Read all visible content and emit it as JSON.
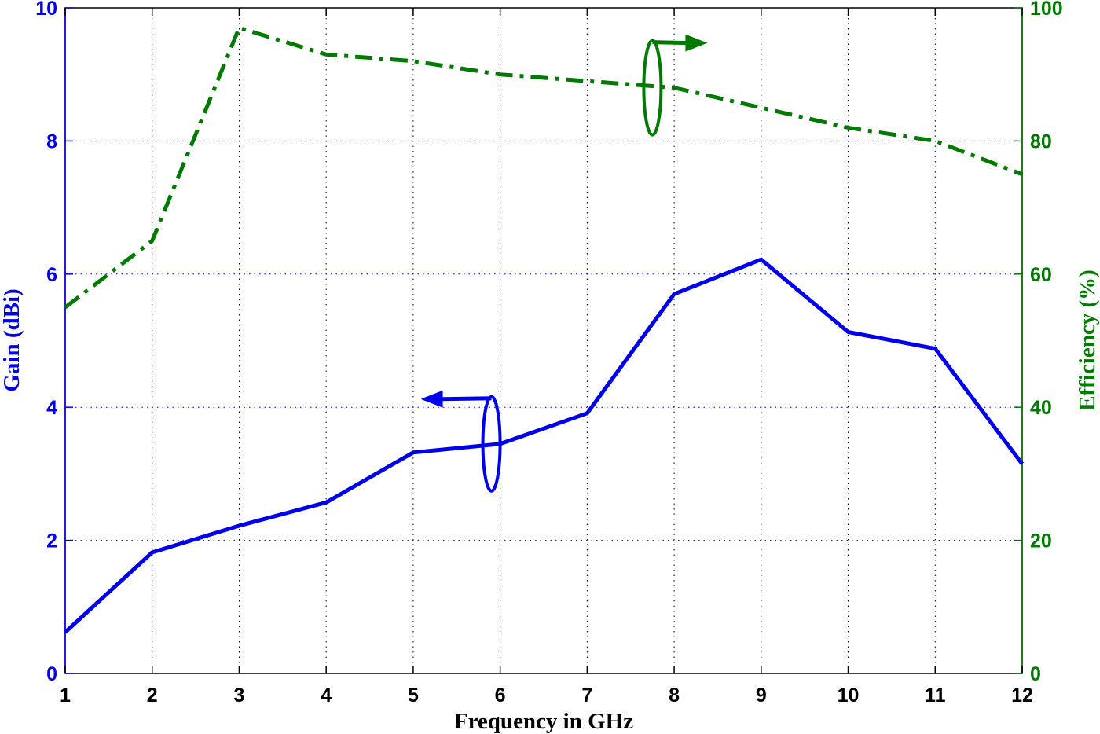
{
  "chart_data": {
    "type": "line",
    "xlabel": "Frequency in GHz",
    "ylabel_left": "Gain (dBi)",
    "ylabel_right": "Efficiency (%)",
    "x": [
      1,
      2,
      3,
      4,
      5,
      6,
      7,
      8,
      9,
      10,
      11,
      12
    ],
    "xlim": [
      1,
      12
    ],
    "ylim_left": [
      0,
      10
    ],
    "ylim_right": [
      0,
      100
    ],
    "x_ticks": [
      "1",
      "2",
      "3",
      "4",
      "5",
      "6",
      "7",
      "8",
      "9",
      "10",
      "11",
      "12"
    ],
    "y_ticks_left": [
      "0",
      "2",
      "4",
      "6",
      "8",
      "10"
    ],
    "y_ticks_right": [
      "0",
      "20",
      "40",
      "60",
      "80",
      "100"
    ],
    "grid": true,
    "series": [
      {
        "axis": "left",
        "style": "solid",
        "color": "#0000ee",
        "values": [
          0.62,
          1.82,
          2.22,
          2.57,
          3.32,
          3.45,
          3.91,
          5.7,
          6.22,
          5.13,
          4.88,
          3.15
        ]
      },
      {
        "axis": "right",
        "style": "dash-dot",
        "color": "#007a00",
        "values": [
          55,
          65,
          97,
          93,
          92,
          90,
          89,
          88,
          85,
          82,
          80,
          75
        ]
      }
    ],
    "annotations": [
      {
        "series": 0,
        "type": "ellipse-arrow",
        "points_to": "left-axis",
        "at_x": 5.9,
        "at_y": 3.45
      },
      {
        "series": 1,
        "type": "ellipse-arrow",
        "points_to": "right-axis",
        "at_x": 7.75,
        "at_y": 88
      }
    ]
  }
}
